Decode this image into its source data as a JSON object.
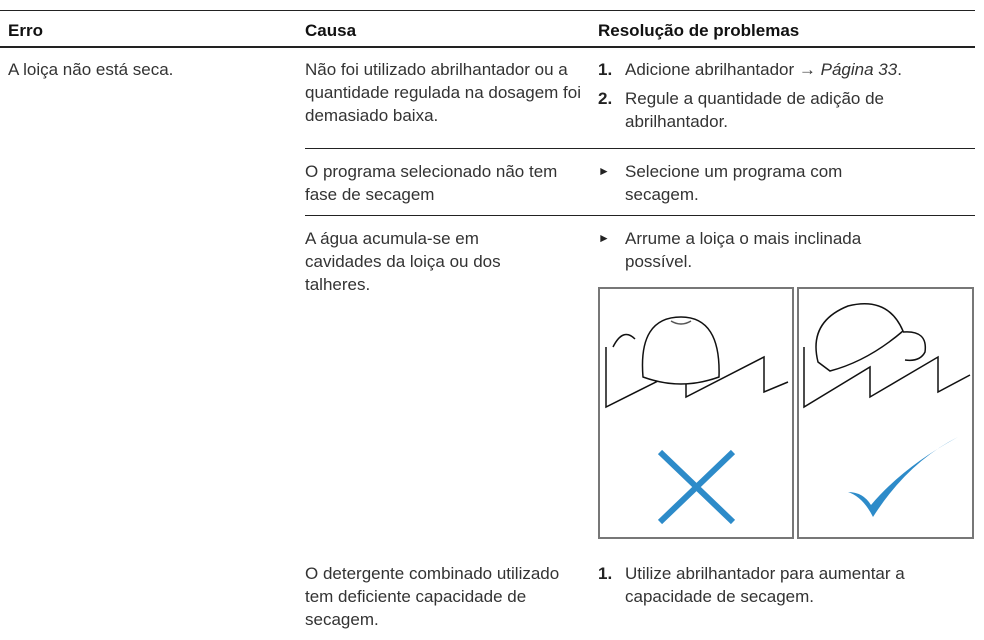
{
  "header": {
    "erro": "Erro",
    "causa": "Causa",
    "resolucao": "Resolução de problemas"
  },
  "rows": [
    {
      "erro": "A loiça não está seca.",
      "causa": "Não foi utilizado abrilhantador ou a quantidade regulada na dosagem foi demasiado baixa.",
      "steps": [
        {
          "marker": "1.",
          "text": "Adicione abrilhantador → ",
          "link": "Página 33",
          "end": "."
        },
        {
          "marker": "2.",
          "text": "Regule a quantidade de adição de abrilhantador."
        }
      ]
    },
    {
      "causa": "O programa selecionado não tem fase de secagem",
      "steps": [
        {
          "marker": "►",
          "text": "Selecione um programa com secagem."
        }
      ]
    },
    {
      "causa": "A água acumula-se em cavidades da loiça ou dos talheres.",
      "steps": [
        {
          "marker": "►",
          "text": "Arrume a loiça o mais inclinada possível."
        }
      ]
    },
    {
      "causa": "O detergente combinado utilizado tem deficiente capacidade de secagem.",
      "steps": [
        {
          "marker": "1.",
          "text": "Utilize abrilhantador para aumentar a capacidade de secagem."
        }
      ]
    }
  ]
}
